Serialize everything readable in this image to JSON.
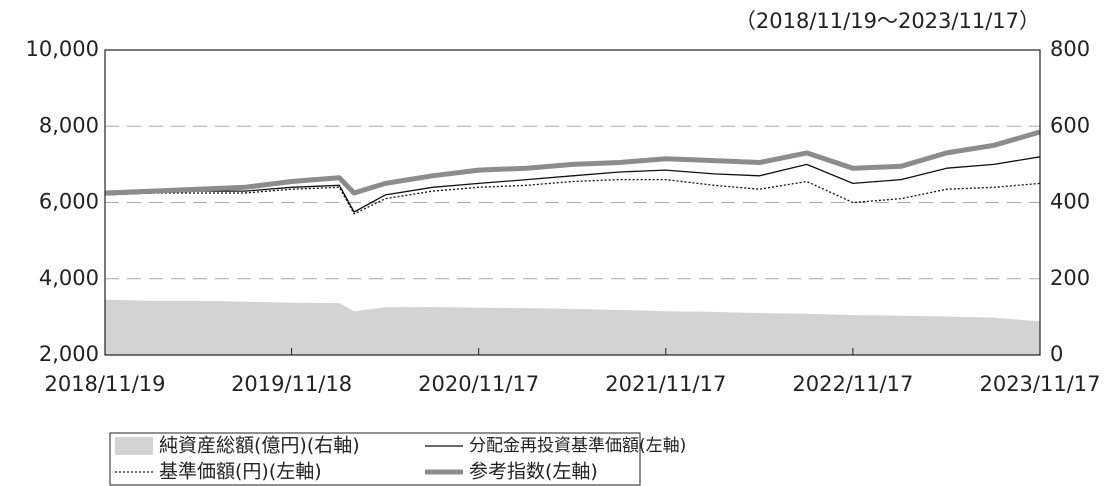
{
  "chart_data": {
    "type": "line",
    "subtitle": "（2018/11/19～2023/11/17）",
    "x": [
      "2018/11/19",
      "2019/02/19",
      "2019/05/19",
      "2019/08/19",
      "2019/11/18",
      "2020/02/19",
      "2020/03/19",
      "2020/05/19",
      "2020/08/19",
      "2020/11/17",
      "2021/02/19",
      "2021/05/19",
      "2021/08/19",
      "2021/11/17",
      "2022/02/19",
      "2022/05/19",
      "2022/08/19",
      "2022/11/17",
      "2023/02/19",
      "2023/05/19",
      "2023/08/19",
      "2023/11/17"
    ],
    "xlim": [
      "2018/11/19",
      "2023/11/17"
    ],
    "xticks": [
      "2018/11/19",
      "2019/11/18",
      "2020/11/17",
      "2021/11/17",
      "2022/11/17",
      "2023/11/17"
    ],
    "ylim": [
      2000,
      10000
    ],
    "yticks": [
      {
        "value": 2000,
        "label": "2,000"
      },
      {
        "value": 4000,
        "label": "4,000"
      },
      {
        "value": 6000,
        "label": "6,000"
      },
      {
        "value": 8000,
        "label": "8,000"
      },
      {
        "value": 10000,
        "label": "10,000"
      }
    ],
    "y2lim": [
      0,
      800
    ],
    "y2ticks": [
      0,
      200,
      400,
      600,
      800
    ],
    "grid": true,
    "series": [
      {
        "name": "純資産総額(億円)(右軸)",
        "style": "area",
        "axis": "y2",
        "color": "#d3d3d3",
        "values": [
          145,
          142,
          142,
          140,
          137,
          136,
          115,
          125,
          126,
          124,
          123,
          121,
          118,
          115,
          113,
          110,
          108,
          105,
          103,
          101,
          98,
          88
        ]
      },
      {
        "name": "分配金再投資基準価額(左軸)",
        "style": "solid",
        "color": "#111111",
        "values": [
          6200,
          6250,
          6300,
          6300,
          6400,
          6450,
          5750,
          6200,
          6400,
          6500,
          6600,
          6700,
          6800,
          6850,
          6750,
          6700,
          7000,
          6500,
          6600,
          6900,
          7000,
          7200
        ]
      },
      {
        "name": "基準価額(円)(左軸)",
        "style": "dotted",
        "color": "#111111",
        "values": [
          6200,
          6250,
          6250,
          6250,
          6350,
          6400,
          5700,
          6100,
          6300,
          6400,
          6450,
          6550,
          6600,
          6600,
          6450,
          6350,
          6550,
          6000,
          6100,
          6350,
          6400,
          6500
        ]
      },
      {
        "name": "参考指数(左軸)",
        "style": "thick",
        "color": "#8c8c8c",
        "values": [
          6250,
          6300,
          6350,
          6400,
          6550,
          6650,
          6250,
          6500,
          6700,
          6850,
          6900,
          7000,
          7050,
          7150,
          7100,
          7050,
          7300,
          6900,
          6950,
          7300,
          7500,
          7850
        ]
      }
    ]
  }
}
